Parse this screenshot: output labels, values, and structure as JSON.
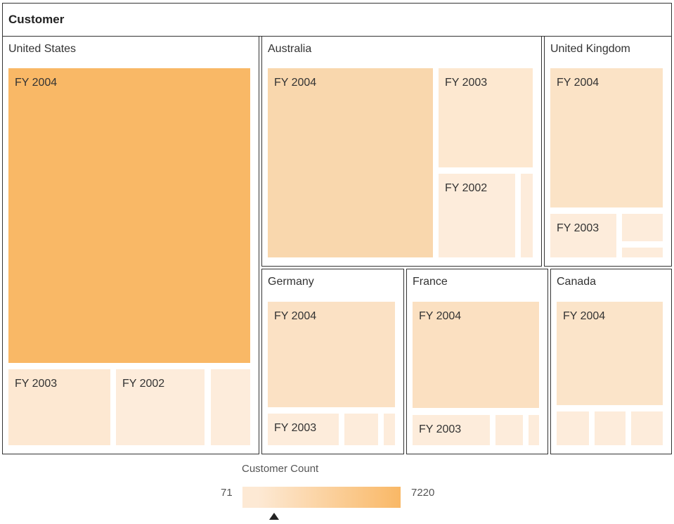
{
  "chart_data": {
    "type": "treemap",
    "title": "Customer",
    "colors": {
      "low": "#fde9d4",
      "high": "#f9b866"
    },
    "groups": [
      {
        "name": "United States",
        "leaves": [
          {
            "label": "FY 2004",
            "color": "#f9b866"
          },
          {
            "label": "FY 2003",
            "color": "#fde8d2"
          },
          {
            "label": "FY 2002",
            "color": "#fdecdb"
          },
          {
            "label": "",
            "color": "#fdecdb"
          }
        ]
      },
      {
        "name": "Australia",
        "leaves": [
          {
            "label": "FY 2004",
            "color": "#f9d7ad"
          },
          {
            "label": "FY 2003",
            "color": "#fde8d0"
          },
          {
            "label": "FY 2002",
            "color": "#fdecdb"
          },
          {
            "label": "",
            "color": "#fdecdb"
          }
        ]
      },
      {
        "name": "United Kingdom",
        "leaves": [
          {
            "label": "FY 2004",
            "color": "#fbe3c6"
          },
          {
            "label": "FY 2003",
            "color": "#fdecdb"
          },
          {
            "label": "",
            "color": "#fdecdb"
          },
          {
            "label": "",
            "color": "#fdecdb"
          }
        ]
      },
      {
        "name": "Germany",
        "leaves": [
          {
            "label": "FY 2004",
            "color": "#fbe1c4"
          },
          {
            "label": "FY 2003",
            "color": "#fdecdb"
          },
          {
            "label": "",
            "color": "#fdecdb"
          },
          {
            "label": "",
            "color": "#fdecdb"
          }
        ]
      },
      {
        "name": "France",
        "leaves": [
          {
            "label": "FY 2004",
            "color": "#fbe0c1"
          },
          {
            "label": "FY 2003",
            "color": "#fdecdb"
          },
          {
            "label": "",
            "color": "#fdecdb"
          },
          {
            "label": "",
            "color": "#fdecdb"
          }
        ]
      },
      {
        "name": "Canada",
        "leaves": [
          {
            "label": "FY 2004",
            "color": "#fbe4c9"
          },
          {
            "label": "",
            "color": "#fdecdb"
          },
          {
            "label": "",
            "color": "#fdecdb"
          },
          {
            "label": "",
            "color": "#fdecdb"
          }
        ]
      }
    ],
    "legend": {
      "title": "Customer Count",
      "min": "71",
      "max": "7220",
      "pointer_fraction": 0.2
    }
  }
}
